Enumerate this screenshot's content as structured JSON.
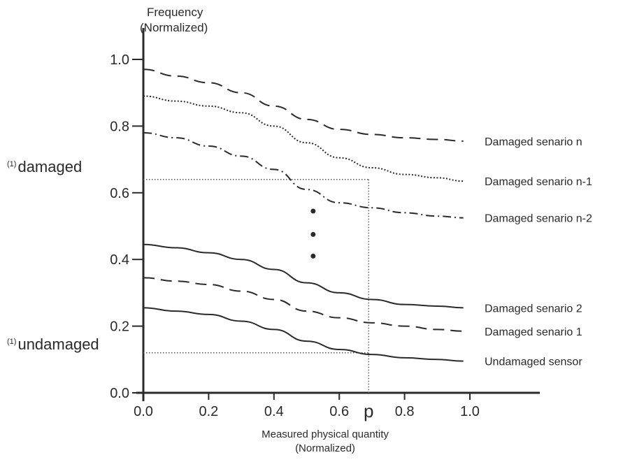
{
  "chart_data": {
    "type": "line",
    "title": "",
    "ylabel_line1": "Frequency",
    "ylabel_line2": "(Normalized)",
    "xlabel_line1": "Measured physical quantity",
    "xlabel_line2": "(Normalized)",
    "xlim": [
      0,
      1.0
    ],
    "ylim": [
      0,
      1.0
    ],
    "xticks": [
      0.0,
      0.2,
      0.4,
      0.6,
      0.8,
      1.0
    ],
    "xtick_labels": [
      "0.0",
      "0.2",
      "0.4",
      "0.6",
      "0.8",
      "1.0"
    ],
    "yticks": [
      0.0,
      0.2,
      0.4,
      0.6,
      0.8,
      1.0
    ],
    "ytick_labels": [
      "0.0",
      "0.2",
      "0.4",
      "0.6",
      "0.8",
      "1.0"
    ],
    "grid": false,
    "legend": "inline labels at right end of each curve",
    "x": [
      0.0,
      0.1,
      0.2,
      0.3,
      0.4,
      0.5,
      0.6,
      0.7,
      0.8,
      0.9,
      0.98
    ],
    "series": [
      {
        "name": "Damaged senario n",
        "style": "dashed",
        "values": [
          0.97,
          0.95,
          0.93,
          0.9,
          0.86,
          0.82,
          0.79,
          0.775,
          0.765,
          0.76,
          0.755
        ]
      },
      {
        "name": "Damaged senario n-1",
        "style": "dotted",
        "values": [
          0.89,
          0.875,
          0.86,
          0.84,
          0.8,
          0.75,
          0.705,
          0.675,
          0.655,
          0.645,
          0.635
        ]
      },
      {
        "name": "Damaged senario n-2",
        "style": "dash-dot",
        "values": [
          0.78,
          0.765,
          0.74,
          0.71,
          0.67,
          0.61,
          0.57,
          0.555,
          0.54,
          0.53,
          0.525
        ]
      },
      {
        "name": "Damaged senario 2",
        "style": "solid",
        "values": [
          0.445,
          0.435,
          0.42,
          0.4,
          0.37,
          0.33,
          0.3,
          0.28,
          0.265,
          0.26,
          0.255
        ]
      },
      {
        "name": "Damaged senario 1",
        "style": "dashed",
        "values": [
          0.345,
          0.335,
          0.325,
          0.305,
          0.28,
          0.245,
          0.225,
          0.21,
          0.2,
          0.19,
          0.185
        ]
      },
      {
        "name": "Undamaged sensor",
        "style": "solid",
        "values": [
          0.255,
          0.245,
          0.235,
          0.215,
          0.19,
          0.155,
          0.13,
          0.115,
          0.105,
          0.1,
          0.095
        ]
      }
    ],
    "reference_lines": {
      "p_value": 0.69,
      "p_label": "p",
      "damaged_level": 0.64,
      "undamaged_level": 0.12
    },
    "annotations": {
      "damaged_label": "damaged",
      "undamaged_label": "undamaged",
      "superscript": "(1)",
      "ellipsis_x": 0.52,
      "ellipsis_y": [
        0.545,
        0.475,
        0.41
      ]
    },
    "colors": {
      "ink": "#2a2a2a",
      "reference": "#555555",
      "background": "#ffffff"
    }
  }
}
